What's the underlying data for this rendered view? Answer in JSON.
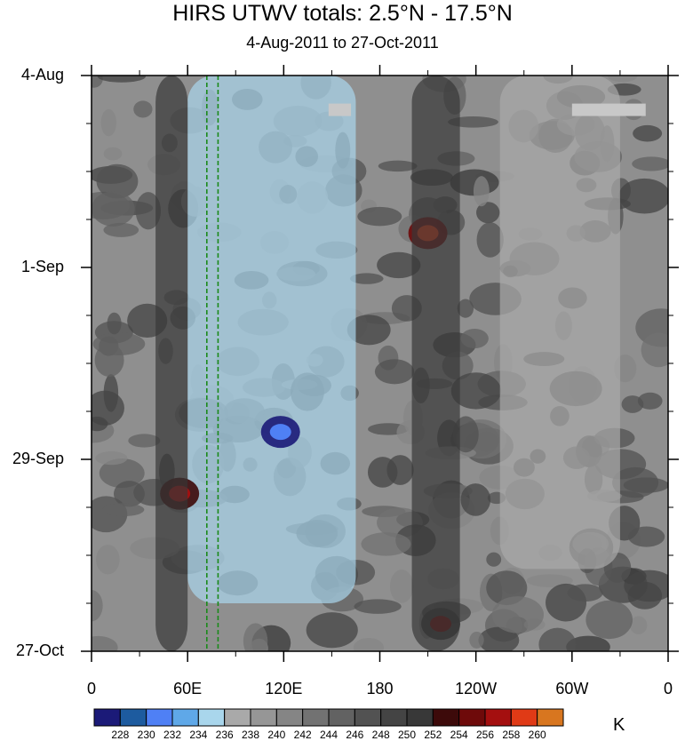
{
  "chart_data": {
    "type": "heatmap",
    "title": "HIRS UTWV totals: 2.5°N - 17.5°N",
    "subtitle": "4-Aug-2011 to 27-Oct-2011",
    "x_tick_labels": [
      "0",
      "60E",
      "120E",
      "180",
      "120W",
      "60W",
      "0"
    ],
    "x_ticks_deg_east": [
      0,
      60,
      120,
      180,
      240,
      300,
      360
    ],
    "xlim_deg_east": [
      0,
      360
    ],
    "y_tick_labels": [
      "4-Aug",
      "1-Sep",
      "29-Sep",
      "27-Oct"
    ],
    "y_range": [
      "2011-08-04",
      "2011-10-27"
    ],
    "y_direction": "time increasing downward",
    "colorbar_levels": [
      228,
      230,
      232,
      234,
      236,
      238,
      240,
      242,
      244,
      246,
      248,
      250,
      252,
      254,
      256,
      258,
      260
    ],
    "colorbar_colors": [
      "#1b1a78",
      "#1d5b9f",
      "#4f80f5",
      "#5fa8e8",
      "#a9d6ec",
      "#a9a9a9",
      "#969696",
      "#858585",
      "#727272",
      "#626262",
      "#525252",
      "#444444",
      "#383838",
      "#3d0a0a",
      "#6e0a0a",
      "#a40f0f",
      "#e03a16",
      "#d8761f"
    ],
    "units": "K",
    "reference_lines": [
      {
        "lon_deg_east": 72,
        "style": "dashed",
        "color": "#1a8a1a"
      },
      {
        "lon_deg_east": 79,
        "style": "dashed",
        "color": "#1a8a1a"
      }
    ],
    "features_approx": [
      {
        "desc": "moist (low K) band",
        "lon_range": [
          60,
          165
        ],
        "date_range": [
          "2011-08-04",
          "2011-10-20"
        ],
        "value": 234
      },
      {
        "desc": "moist core",
        "lon_center": 118,
        "date": "2011-09-25",
        "value": 230
      },
      {
        "desc": "dry maximum",
        "lon_center": 210,
        "date": "2011-08-27",
        "value": 258
      },
      {
        "desc": "dry maximum",
        "lon_center": 55,
        "date": "2011-10-04",
        "value": 256
      },
      {
        "desc": "dry maximum",
        "lon_center": 218,
        "date": "2011-10-23",
        "value": 254
      },
      {
        "desc": "dry band",
        "lon_range": [
          40,
          60
        ],
        "date_range": [
          "2011-08-04",
          "2011-10-27"
        ],
        "value": 250
      },
      {
        "desc": "dry band",
        "lon_range": [
          200,
          230
        ],
        "date_range": [
          "2011-08-04",
          "2011-10-27"
        ],
        "value": 250
      },
      {
        "desc": "moist patches",
        "lon_range": [
          255,
          330
        ],
        "date_range": [
          "2011-08-04",
          "2011-10-15"
        ],
        "value": 236
      }
    ],
    "missing_data_patches": [
      {
        "lon_range": [
          300,
          346
        ],
        "date": "2011-08-09"
      },
      {
        "lon_range": [
          148,
          162
        ],
        "date": "2011-08-09"
      }
    ]
  }
}
